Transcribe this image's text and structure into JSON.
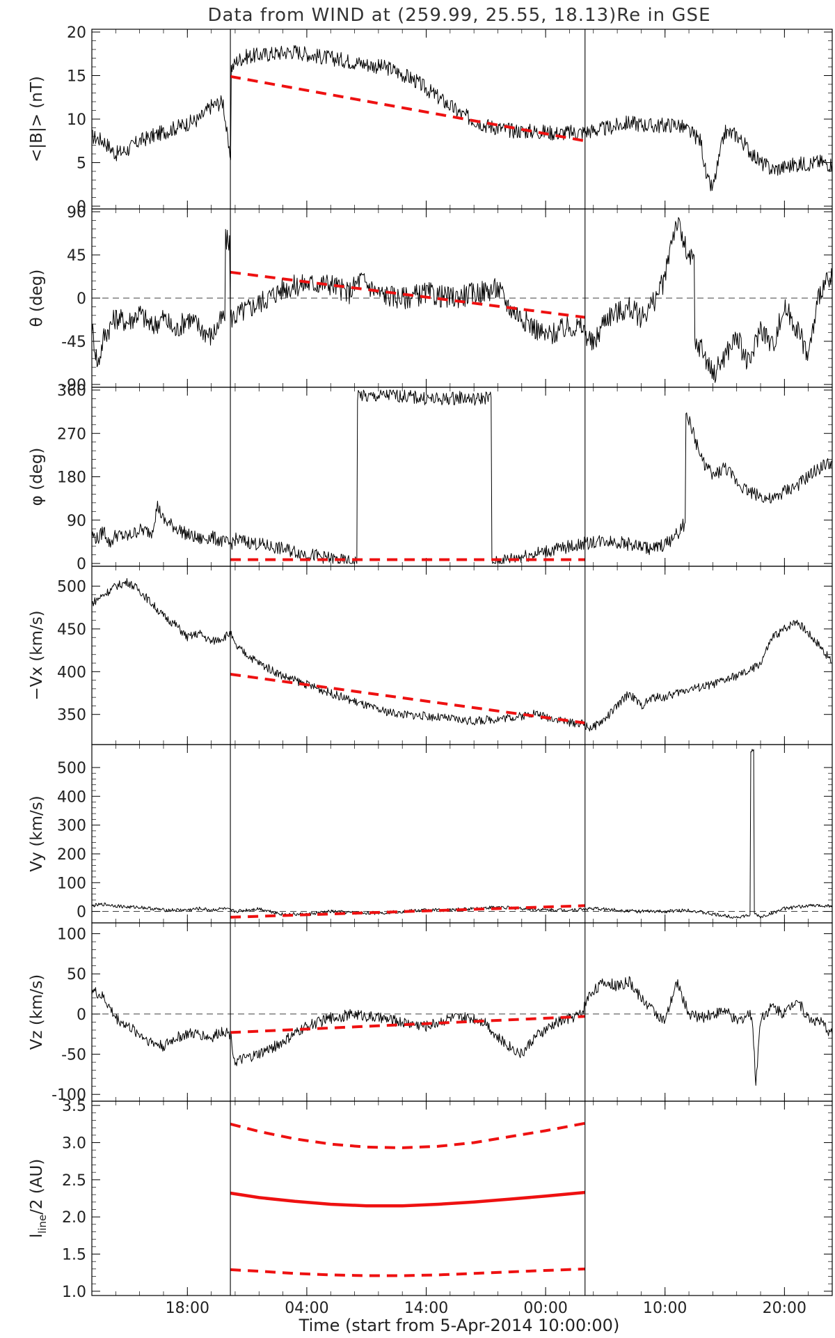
{
  "chart_data": {
    "type": "line",
    "title": "Data from WIND at (259.99, 25.55, 18.13)Re in GSE",
    "xlabel": "Time (start from  5-Apr-2014 10:00:00)",
    "x_unit": "hours since start",
    "xlim": [
      0,
      62
    ],
    "x_ticks": [
      {
        "label": "18:00",
        "x": 8
      },
      {
        "label": "04:00",
        "x": 18
      },
      {
        "label": "14:00",
        "x": 28
      },
      {
        "label": "00:00",
        "x": 38
      },
      {
        "label": "10:00",
        "x": 48
      },
      {
        "label": "20:00",
        "x": 58
      }
    ],
    "boundaries": [
      11.6,
      41.3
    ],
    "panels": [
      {
        "id": "b",
        "ylabel": "<|B|> (nT)",
        "ylim": [
          0,
          20
        ],
        "yticks": [
          0,
          5,
          10,
          15,
          20
        ],
        "zero_line": false,
        "observed": {
          "x": [
            0,
            1,
            2,
            3,
            4,
            5,
            6,
            7,
            8,
            9,
            10,
            11,
            11.5,
            11.8,
            12.2,
            13,
            15,
            17,
            19,
            21,
            23,
            25,
            27,
            29,
            31,
            33,
            35,
            37,
            39,
            41,
            43,
            45,
            47,
            49,
            50,
            51,
            51.5,
            52,
            53,
            54,
            55,
            56,
            57,
            58,
            59,
            60,
            61,
            62
          ],
          "y": [
            8,
            7.5,
            6,
            6.5,
            7.5,
            8,
            8.5,
            9,
            9.5,
            10,
            11.5,
            12,
            6,
            16,
            16.8,
            17.2,
            17.5,
            17.8,
            17.2,
            16.8,
            16.3,
            15.8,
            14.5,
            12.5,
            10.5,
            9.3,
            8.7,
            8.6,
            8.4,
            8.5,
            8.9,
            9.6,
            9.2,
            9.4,
            8.6,
            7.5,
            3,
            2,
            8.5,
            8.2,
            6.5,
            5,
            4.2,
            4.5,
            4.8,
            4.9,
            5.1,
            4.8
          ]
        },
        "fits": [
          {
            "style": "dashed",
            "x": [
              11.6,
              41.3
            ],
            "y": [
              14.9,
              7.5
            ]
          }
        ]
      },
      {
        "id": "theta",
        "ylabel": "θ (deg)",
        "ylim": [
          -90,
          90
        ],
        "yticks": [
          -90,
          -45,
          0,
          45,
          90
        ],
        "zero_line": true,
        "observed": {
          "x": [
            0,
            0.5,
            1,
            2,
            3,
            4,
            5,
            6,
            7,
            8,
            9,
            10,
            11,
            11.4,
            11.8,
            12.5,
            14,
            16,
            18,
            20,
            21.5,
            22.5,
            24,
            26,
            28,
            30,
            32,
            34,
            35,
            36,
            37,
            38,
            39,
            40,
            41,
            42,
            43,
            44,
            45,
            46,
            47,
            48,
            48.5,
            49,
            50,
            51,
            52,
            53,
            54,
            55,
            56,
            57,
            58,
            59,
            60,
            61,
            62
          ],
          "y": [
            -30,
            -70,
            -40,
            -20,
            -25,
            -15,
            -30,
            -20,
            -35,
            -20,
            -30,
            -40,
            -20,
            60,
            -20,
            -15,
            -5,
            10,
            15,
            15,
            5,
            20,
            5,
            0,
            5,
            0,
            5,
            10,
            -10,
            -20,
            -30,
            -40,
            -35,
            -30,
            -30,
            -50,
            -20,
            -15,
            -10,
            -20,
            -5,
            20,
            60,
            80,
            40,
            -50,
            -80,
            -60,
            -40,
            -70,
            -30,
            -50,
            -10,
            -30,
            -60,
            10,
            20
          ]
        },
        "fits": [
          {
            "style": "dashed",
            "x": [
              11.6,
              41.3
            ],
            "y": [
              27,
              -20
            ]
          }
        ]
      },
      {
        "id": "phi",
        "ylabel": "φ (deg)",
        "ylim": [
          0,
          360
        ],
        "yticks": [
          0,
          90,
          180,
          270,
          360
        ],
        "zero_line": false,
        "observed": {
          "x": [
            0,
            0.5,
            1,
            1.5,
            2,
            3,
            4,
            5,
            5.5,
            6,
            7,
            8,
            9,
            10,
            11,
            11.6,
            12,
            14,
            16,
            18,
            20,
            21,
            22,
            22.5,
            23,
            25,
            27,
            29,
            31,
            32,
            33,
            34,
            35,
            36,
            37,
            38,
            39,
            40,
            41,
            42,
            43,
            44,
            45,
            46,
            47,
            48,
            48.5,
            49,
            49.5,
            50,
            51,
            52,
            53,
            54,
            55,
            56,
            57,
            58,
            59,
            60,
            61,
            62
          ],
          "y": [
            60,
            50,
            70,
            40,
            60,
            55,
            70,
            65,
            120,
            90,
            75,
            60,
            50,
            55,
            45,
            40,
            50,
            40,
            30,
            20,
            10,
            5,
            2,
            350,
            345,
            350,
            345,
            340,
            345,
            340,
            345,
            2,
            10,
            15,
            20,
            25,
            30,
            35,
            40,
            45,
            48,
            45,
            40,
            35,
            30,
            40,
            50,
            60,
            80,
            300,
            220,
            180,
            200,
            170,
            150,
            140,
            130,
            150,
            160,
            180,
            200,
            210
          ]
        },
        "fits": [
          {
            "style": "dashed",
            "x": [
              11.6,
              41.3
            ],
            "y": [
              8,
              8
            ]
          }
        ]
      },
      {
        "id": "vx",
        "ylabel": "−Vx (km/s)",
        "ylim": [
          318,
          520
        ],
        "yticks": [
          350,
          400,
          450,
          500
        ],
        "zero_line": false,
        "observed": {
          "x": [
            0,
            1,
            2,
            3,
            4,
            5,
            6,
            7,
            8,
            9,
            10,
            11,
            11.6,
            12,
            14,
            16,
            18,
            20,
            22,
            24,
            26,
            28,
            30,
            32,
            34,
            36,
            37,
            38,
            39,
            40,
            41,
            41.5,
            42,
            43,
            44,
            45,
            46,
            47,
            48,
            49,
            50,
            51,
            52,
            53,
            54,
            55,
            56,
            57,
            58,
            59,
            60,
            61,
            62
          ],
          "y": [
            480,
            490,
            500,
            505,
            495,
            480,
            465,
            455,
            440,
            445,
            435,
            440,
            445,
            430,
            410,
            395,
            385,
            375,
            365,
            355,
            350,
            348,
            345,
            342,
            345,
            348,
            352,
            347,
            345,
            340,
            340,
            335,
            335,
            345,
            360,
            375,
            360,
            370,
            370,
            375,
            380,
            382,
            385,
            390,
            395,
            400,
            410,
            440,
            450,
            460,
            445,
            430,
            410
          ]
        },
        "fits": [
          {
            "style": "dashed",
            "x": [
              11.6,
              41.3
            ],
            "y": [
              397,
              340
            ]
          }
        ]
      },
      {
        "id": "vy",
        "ylabel": "Vy (km/s)",
        "ylim": [
          -30,
          570
        ],
        "yticks": [
          0,
          100,
          200,
          300,
          400,
          500
        ],
        "zero_line": true,
        "observed": {
          "x": [
            0,
            1,
            2,
            3,
            4,
            5,
            6,
            7,
            8,
            9,
            10,
            11,
            12,
            14,
            16,
            18,
            20,
            22,
            24,
            26,
            28,
            30,
            32,
            34,
            36,
            38,
            40,
            42,
            44,
            46,
            48,
            50,
            52,
            54,
            55,
            55.3,
            55.6,
            56,
            58,
            60,
            62
          ],
          "y": [
            20,
            25,
            20,
            15,
            15,
            10,
            5,
            5,
            5,
            10,
            5,
            10,
            0,
            10,
            -10,
            -10,
            0,
            -5,
            -5,
            0,
            5,
            5,
            10,
            15,
            10,
            5,
            5,
            10,
            5,
            0,
            0,
            5,
            -10,
            -20,
            -15,
            560,
            -10,
            -20,
            10,
            20,
            20
          ]
        },
        "fits": [
          {
            "style": "dashed",
            "x": [
              11.6,
              41.3
            ],
            "y": [
              -20,
              20
            ]
          }
        ]
      },
      {
        "id": "vz",
        "ylabel": "Vz (km/s)",
        "ylim": [
          -105,
          110
        ],
        "yticks": [
          -100,
          -50,
          0,
          50,
          100
        ],
        "zero_line": true,
        "observed": {
          "x": [
            0,
            1,
            2,
            3,
            4,
            5,
            6,
            7,
            8,
            9,
            10,
            11,
            11.6,
            12,
            14,
            16,
            18,
            20,
            22,
            24,
            26,
            28,
            30,
            32,
            33,
            34,
            35,
            36,
            37,
            38,
            39,
            40,
            41,
            41.5,
            42,
            43,
            44,
            45,
            46,
            47,
            48,
            49,
            50,
            51,
            52,
            53,
            54,
            55,
            55.3,
            55.6,
            56,
            57,
            58,
            59,
            60,
            61,
            62
          ],
          "y": [
            30,
            20,
            -5,
            -15,
            -25,
            -35,
            -40,
            -30,
            -25,
            -25,
            -30,
            -20,
            -25,
            -60,
            -50,
            -35,
            -15,
            -5,
            0,
            -5,
            -10,
            -15,
            -5,
            -5,
            -10,
            -30,
            -40,
            -50,
            -30,
            -20,
            -10,
            -5,
            0,
            20,
            30,
            40,
            35,
            40,
            20,
            5,
            -10,
            40,
            0,
            -5,
            0,
            5,
            -10,
            0,
            -5,
            -85,
            -5,
            10,
            0,
            20,
            -5,
            -10,
            -25
          ]
        },
        "fits": [
          {
            "style": "dashed",
            "x": [
              11.6,
              41.3
            ],
            "y": [
              -23,
              -3
            ]
          }
        ]
      },
      {
        "id": "lline",
        "ylabel": "l_line/2 (AU)",
        "ylim": [
          0.98,
          3.52
        ],
        "yticks": [
          1.0,
          1.5,
          2.0,
          2.5,
          3.0,
          3.5
        ],
        "zero_line": false,
        "observed": null,
        "fits": [
          {
            "style": "dashed",
            "x": [
              11.6,
              14,
              17,
              20,
              23,
              26,
              29,
              32,
              35,
              38,
              41.3
            ],
            "y": [
              3.25,
              3.15,
              3.05,
              2.98,
              2.94,
              2.93,
              2.95,
              3.0,
              3.08,
              3.16,
              3.26
            ]
          },
          {
            "style": "solid",
            "x": [
              11.6,
              14,
              17,
              20,
              23,
              26,
              29,
              32,
              35,
              38,
              41.3
            ],
            "y": [
              2.32,
              2.26,
              2.21,
              2.17,
              2.15,
              2.15,
              2.17,
              2.2,
              2.24,
              2.28,
              2.33
            ]
          },
          {
            "style": "dashed",
            "x": [
              11.6,
              14,
              17,
              20,
              23,
              26,
              29,
              32,
              35,
              38,
              41.3
            ],
            "y": [
              1.29,
              1.27,
              1.24,
              1.22,
              1.21,
              1.21,
              1.22,
              1.24,
              1.26,
              1.28,
              1.3
            ]
          }
        ]
      }
    ]
  }
}
